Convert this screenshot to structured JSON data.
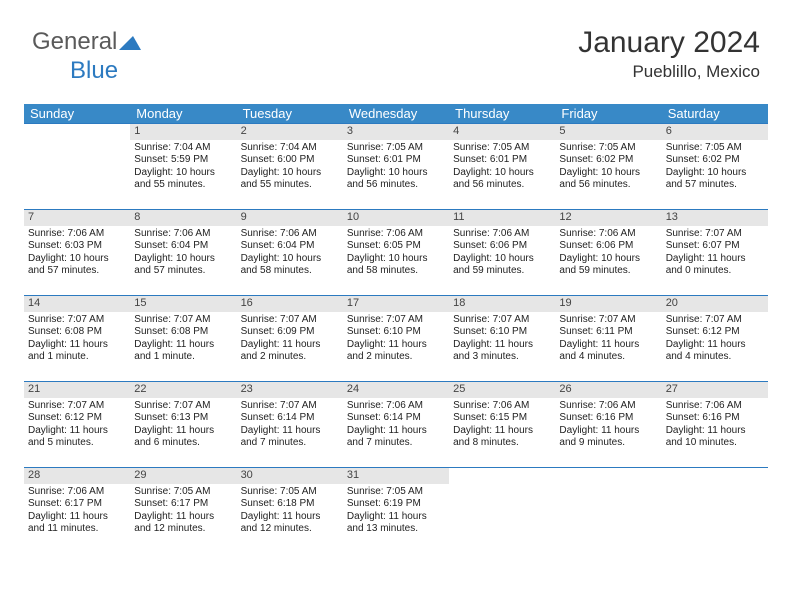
{
  "brand": {
    "part1": "General",
    "part2": "Blue"
  },
  "title": "January 2024",
  "location": "Pueblillo, Mexico",
  "colors": {
    "header_bg": "#3889c7",
    "rule": "#2c7ac0",
    "daynum_bg": "#e6e6e6",
    "text": "#222222",
    "brand_gray": "#5a5a5a",
    "brand_blue": "#2c7ac0"
  },
  "dow": [
    "Sunday",
    "Monday",
    "Tuesday",
    "Wednesday",
    "Thursday",
    "Friday",
    "Saturday"
  ],
  "weeks": [
    [
      {
        "n": "",
        "sr": "",
        "ss": "",
        "dl": ""
      },
      {
        "n": "1",
        "sr": "Sunrise: 7:04 AM",
        "ss": "Sunset: 5:59 PM",
        "dl": "Daylight: 10 hours and 55 minutes."
      },
      {
        "n": "2",
        "sr": "Sunrise: 7:04 AM",
        "ss": "Sunset: 6:00 PM",
        "dl": "Daylight: 10 hours and 55 minutes."
      },
      {
        "n": "3",
        "sr": "Sunrise: 7:05 AM",
        "ss": "Sunset: 6:01 PM",
        "dl": "Daylight: 10 hours and 56 minutes."
      },
      {
        "n": "4",
        "sr": "Sunrise: 7:05 AM",
        "ss": "Sunset: 6:01 PM",
        "dl": "Daylight: 10 hours and 56 minutes."
      },
      {
        "n": "5",
        "sr": "Sunrise: 7:05 AM",
        "ss": "Sunset: 6:02 PM",
        "dl": "Daylight: 10 hours and 56 minutes."
      },
      {
        "n": "6",
        "sr": "Sunrise: 7:05 AM",
        "ss": "Sunset: 6:02 PM",
        "dl": "Daylight: 10 hours and 57 minutes."
      }
    ],
    [
      {
        "n": "7",
        "sr": "Sunrise: 7:06 AM",
        "ss": "Sunset: 6:03 PM",
        "dl": "Daylight: 10 hours and 57 minutes."
      },
      {
        "n": "8",
        "sr": "Sunrise: 7:06 AM",
        "ss": "Sunset: 6:04 PM",
        "dl": "Daylight: 10 hours and 57 minutes."
      },
      {
        "n": "9",
        "sr": "Sunrise: 7:06 AM",
        "ss": "Sunset: 6:04 PM",
        "dl": "Daylight: 10 hours and 58 minutes."
      },
      {
        "n": "10",
        "sr": "Sunrise: 7:06 AM",
        "ss": "Sunset: 6:05 PM",
        "dl": "Daylight: 10 hours and 58 minutes."
      },
      {
        "n": "11",
        "sr": "Sunrise: 7:06 AM",
        "ss": "Sunset: 6:06 PM",
        "dl": "Daylight: 10 hours and 59 minutes."
      },
      {
        "n": "12",
        "sr": "Sunrise: 7:06 AM",
        "ss": "Sunset: 6:06 PM",
        "dl": "Daylight: 10 hours and 59 minutes."
      },
      {
        "n": "13",
        "sr": "Sunrise: 7:07 AM",
        "ss": "Sunset: 6:07 PM",
        "dl": "Daylight: 11 hours and 0 minutes."
      }
    ],
    [
      {
        "n": "14",
        "sr": "Sunrise: 7:07 AM",
        "ss": "Sunset: 6:08 PM",
        "dl": "Daylight: 11 hours and 1 minute."
      },
      {
        "n": "15",
        "sr": "Sunrise: 7:07 AM",
        "ss": "Sunset: 6:08 PM",
        "dl": "Daylight: 11 hours and 1 minute."
      },
      {
        "n": "16",
        "sr": "Sunrise: 7:07 AM",
        "ss": "Sunset: 6:09 PM",
        "dl": "Daylight: 11 hours and 2 minutes."
      },
      {
        "n": "17",
        "sr": "Sunrise: 7:07 AM",
        "ss": "Sunset: 6:10 PM",
        "dl": "Daylight: 11 hours and 2 minutes."
      },
      {
        "n": "18",
        "sr": "Sunrise: 7:07 AM",
        "ss": "Sunset: 6:10 PM",
        "dl": "Daylight: 11 hours and 3 minutes."
      },
      {
        "n": "19",
        "sr": "Sunrise: 7:07 AM",
        "ss": "Sunset: 6:11 PM",
        "dl": "Daylight: 11 hours and 4 minutes."
      },
      {
        "n": "20",
        "sr": "Sunrise: 7:07 AM",
        "ss": "Sunset: 6:12 PM",
        "dl": "Daylight: 11 hours and 4 minutes."
      }
    ],
    [
      {
        "n": "21",
        "sr": "Sunrise: 7:07 AM",
        "ss": "Sunset: 6:12 PM",
        "dl": "Daylight: 11 hours and 5 minutes."
      },
      {
        "n": "22",
        "sr": "Sunrise: 7:07 AM",
        "ss": "Sunset: 6:13 PM",
        "dl": "Daylight: 11 hours and 6 minutes."
      },
      {
        "n": "23",
        "sr": "Sunrise: 7:07 AM",
        "ss": "Sunset: 6:14 PM",
        "dl": "Daylight: 11 hours and 7 minutes."
      },
      {
        "n": "24",
        "sr": "Sunrise: 7:06 AM",
        "ss": "Sunset: 6:14 PM",
        "dl": "Daylight: 11 hours and 7 minutes."
      },
      {
        "n": "25",
        "sr": "Sunrise: 7:06 AM",
        "ss": "Sunset: 6:15 PM",
        "dl": "Daylight: 11 hours and 8 minutes."
      },
      {
        "n": "26",
        "sr": "Sunrise: 7:06 AM",
        "ss": "Sunset: 6:16 PM",
        "dl": "Daylight: 11 hours and 9 minutes."
      },
      {
        "n": "27",
        "sr": "Sunrise: 7:06 AM",
        "ss": "Sunset: 6:16 PM",
        "dl": "Daylight: 11 hours and 10 minutes."
      }
    ],
    [
      {
        "n": "28",
        "sr": "Sunrise: 7:06 AM",
        "ss": "Sunset: 6:17 PM",
        "dl": "Daylight: 11 hours and 11 minutes."
      },
      {
        "n": "29",
        "sr": "Sunrise: 7:05 AM",
        "ss": "Sunset: 6:17 PM",
        "dl": "Daylight: 11 hours and 12 minutes."
      },
      {
        "n": "30",
        "sr": "Sunrise: 7:05 AM",
        "ss": "Sunset: 6:18 PM",
        "dl": "Daylight: 11 hours and 12 minutes."
      },
      {
        "n": "31",
        "sr": "Sunrise: 7:05 AM",
        "ss": "Sunset: 6:19 PM",
        "dl": "Daylight: 11 hours and 13 minutes."
      },
      {
        "n": "",
        "sr": "",
        "ss": "",
        "dl": ""
      },
      {
        "n": "",
        "sr": "",
        "ss": "",
        "dl": ""
      },
      {
        "n": "",
        "sr": "",
        "ss": "",
        "dl": ""
      }
    ]
  ]
}
